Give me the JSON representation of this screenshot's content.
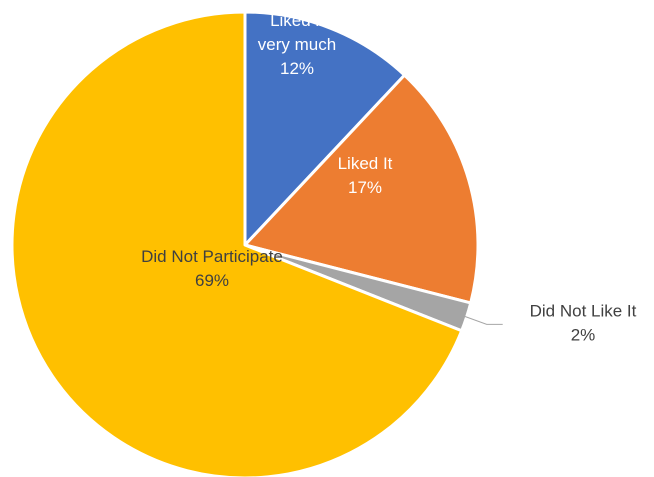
{
  "chart_data": {
    "type": "pie",
    "title": "",
    "start_angle_deg": 0,
    "direction": "clockwise",
    "slices": [
      {
        "name": "Liked it very much",
        "label_lines": [
          "Liked it",
          "very much"
        ],
        "value": 12,
        "value_label": "12%",
        "color": "#4472C4",
        "label_position": "inside"
      },
      {
        "name": "Liked It",
        "label_lines": [
          "Liked It"
        ],
        "value": 17,
        "value_label": "17%",
        "color": "#ED7D31",
        "label_position": "inside"
      },
      {
        "name": "Did Not Like It",
        "label_lines": [
          "Did Not Like It"
        ],
        "value": 2,
        "value_label": "2%",
        "color": "#A5A5A5",
        "label_position": "outside"
      },
      {
        "name": "Did Not Participate",
        "label_lines": [
          "Did Not Participate"
        ],
        "value": 69,
        "value_label": "69%",
        "color": "#FFC000",
        "label_position": "inside"
      }
    ],
    "legend": "none"
  }
}
